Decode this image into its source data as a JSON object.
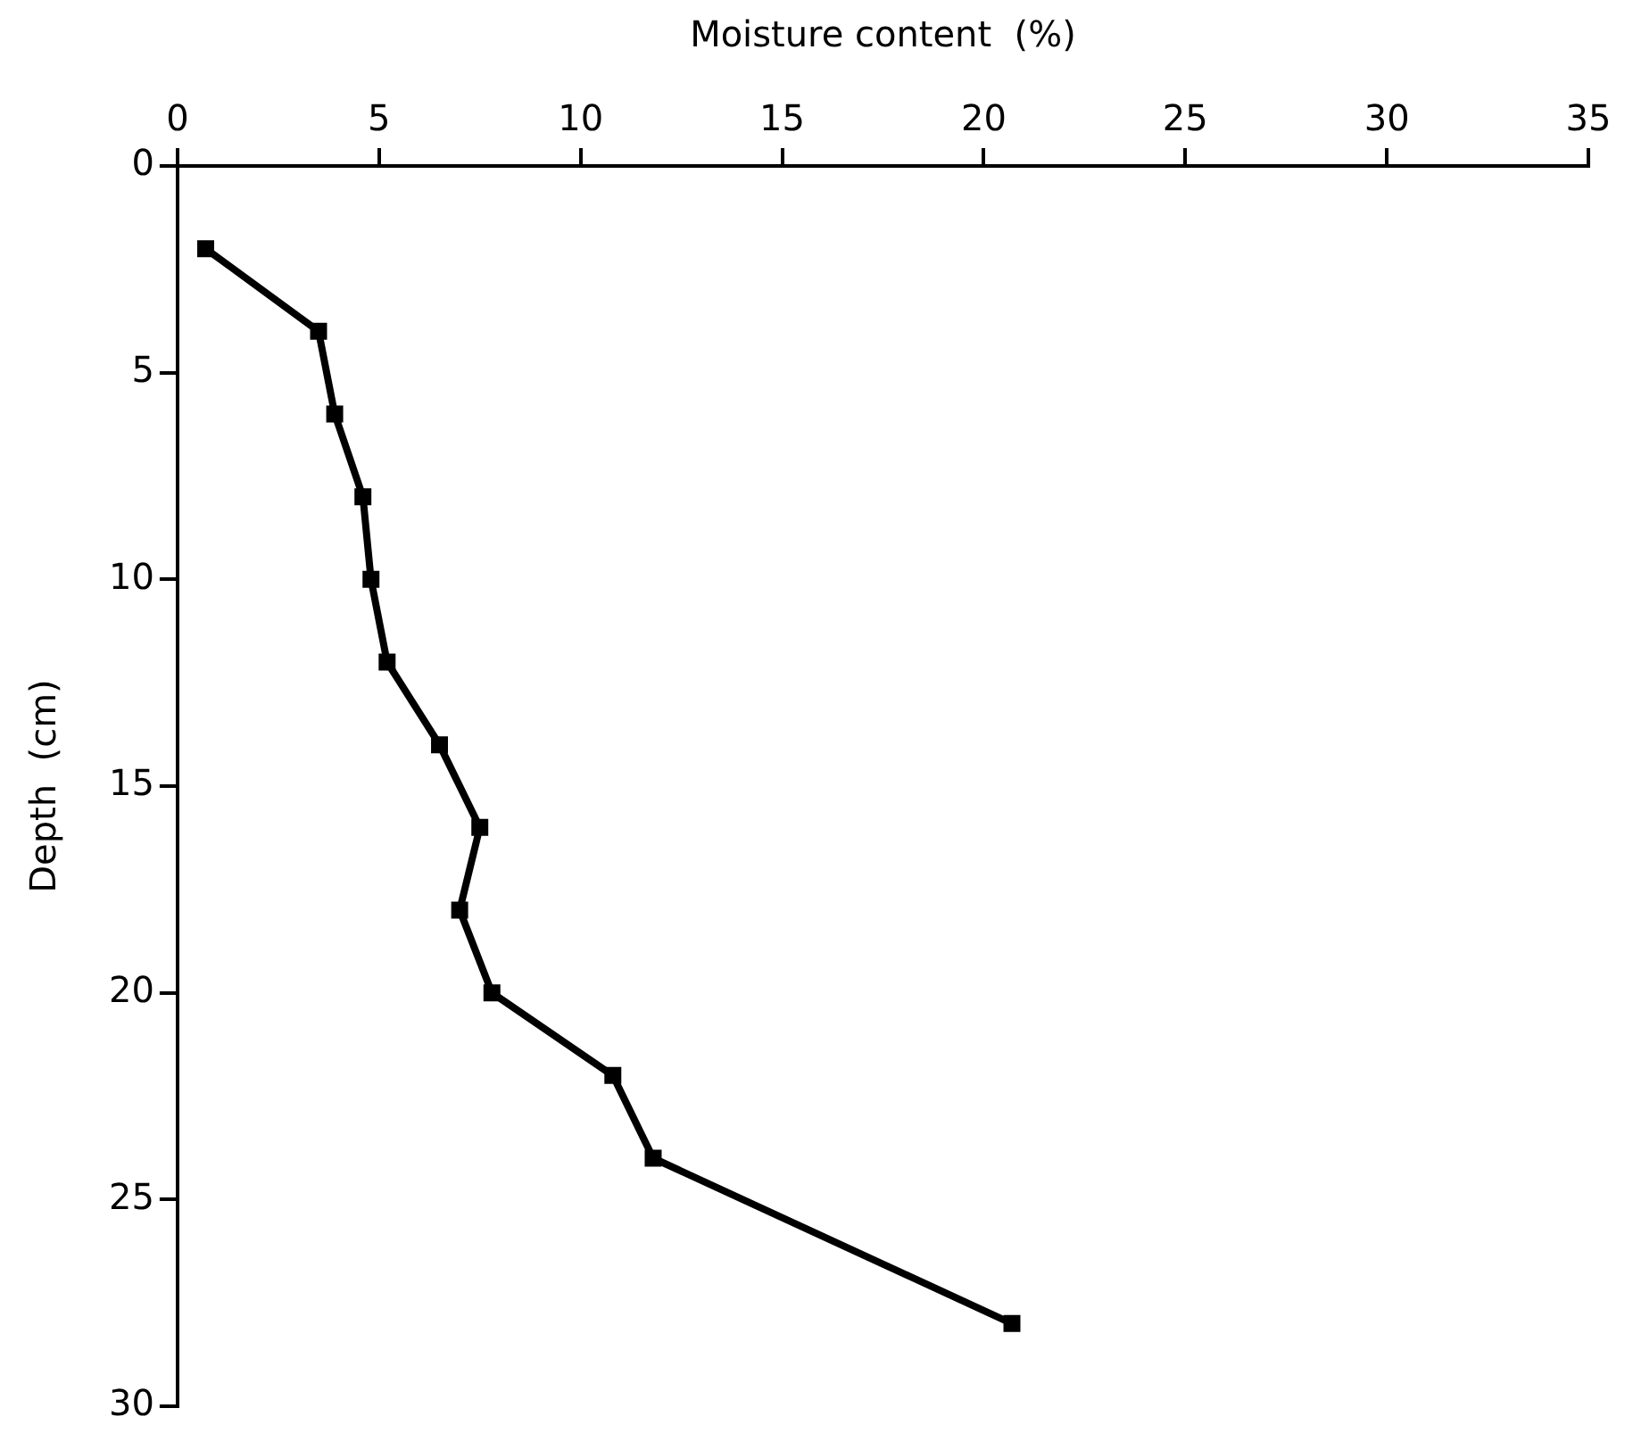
{
  "chart_data": {
    "type": "line",
    "xlabel": "Moisture content  (%)",
    "ylabel": "Depth  (cm)",
    "x": [
      0.7,
      3.5,
      3.9,
      4.6,
      4.8,
      5.2,
      6.5,
      7.5,
      7.0,
      7.8,
      10.8,
      11.8,
      20.7
    ],
    "values": [
      2,
      4,
      6,
      8,
      10,
      12,
      14,
      16,
      18,
      20,
      22,
      24,
      28
    ],
    "color": "#000000",
    "marker": "square",
    "line_style": "solid",
    "xlim": [
      0,
      35
    ],
    "xticks": [
      0,
      5,
      10,
      15,
      20,
      25,
      30,
      35
    ],
    "ylim": [
      30,
      0
    ],
    "yticks": [
      0,
      5,
      10,
      15,
      20,
      25,
      30
    ]
  }
}
